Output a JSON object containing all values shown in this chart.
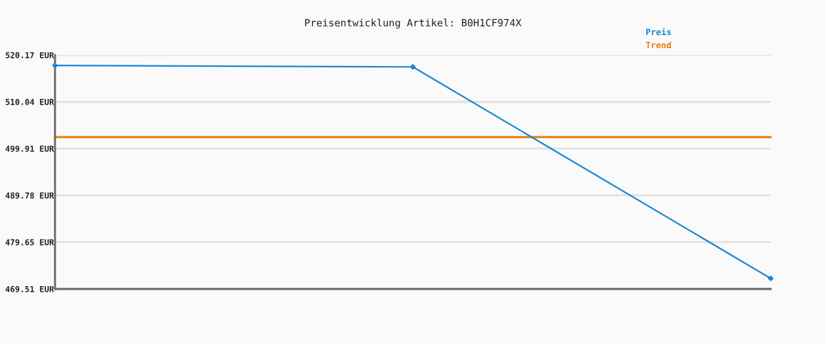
{
  "chart_data": {
    "type": "line",
    "title": "Preisentwicklung Artikel: B0H1CF974X",
    "categories": [
      null,
      null,
      null
    ],
    "series": [
      {
        "name": "Preis",
        "color": "#1c86d6",
        "values": [
          517.9,
          517.6,
          471.8
        ],
        "marker": "diamond"
      },
      {
        "name": "Trend",
        "color": "#e57d0a",
        "values": [
          502.4,
          502.4,
          502.4
        ],
        "marker": "none"
      }
    ],
    "ylim": [
      469.51,
      520.17
    ],
    "yticks": [
      {
        "value": 469.51,
        "label": "469.51 EUR"
      },
      {
        "value": 479.65,
        "label": "479.65 EUR"
      },
      {
        "value": 489.78,
        "label": "489.78 EUR"
      },
      {
        "value": 499.91,
        "label": "499.91 EUR"
      },
      {
        "value": 510.04,
        "label": "510.04 EUR"
      },
      {
        "value": 520.17,
        "label": "520.17 EUR"
      }
    ],
    "grid": "y",
    "legend": "top right",
    "line_style": "solid",
    "tick_labels": "y"
  }
}
